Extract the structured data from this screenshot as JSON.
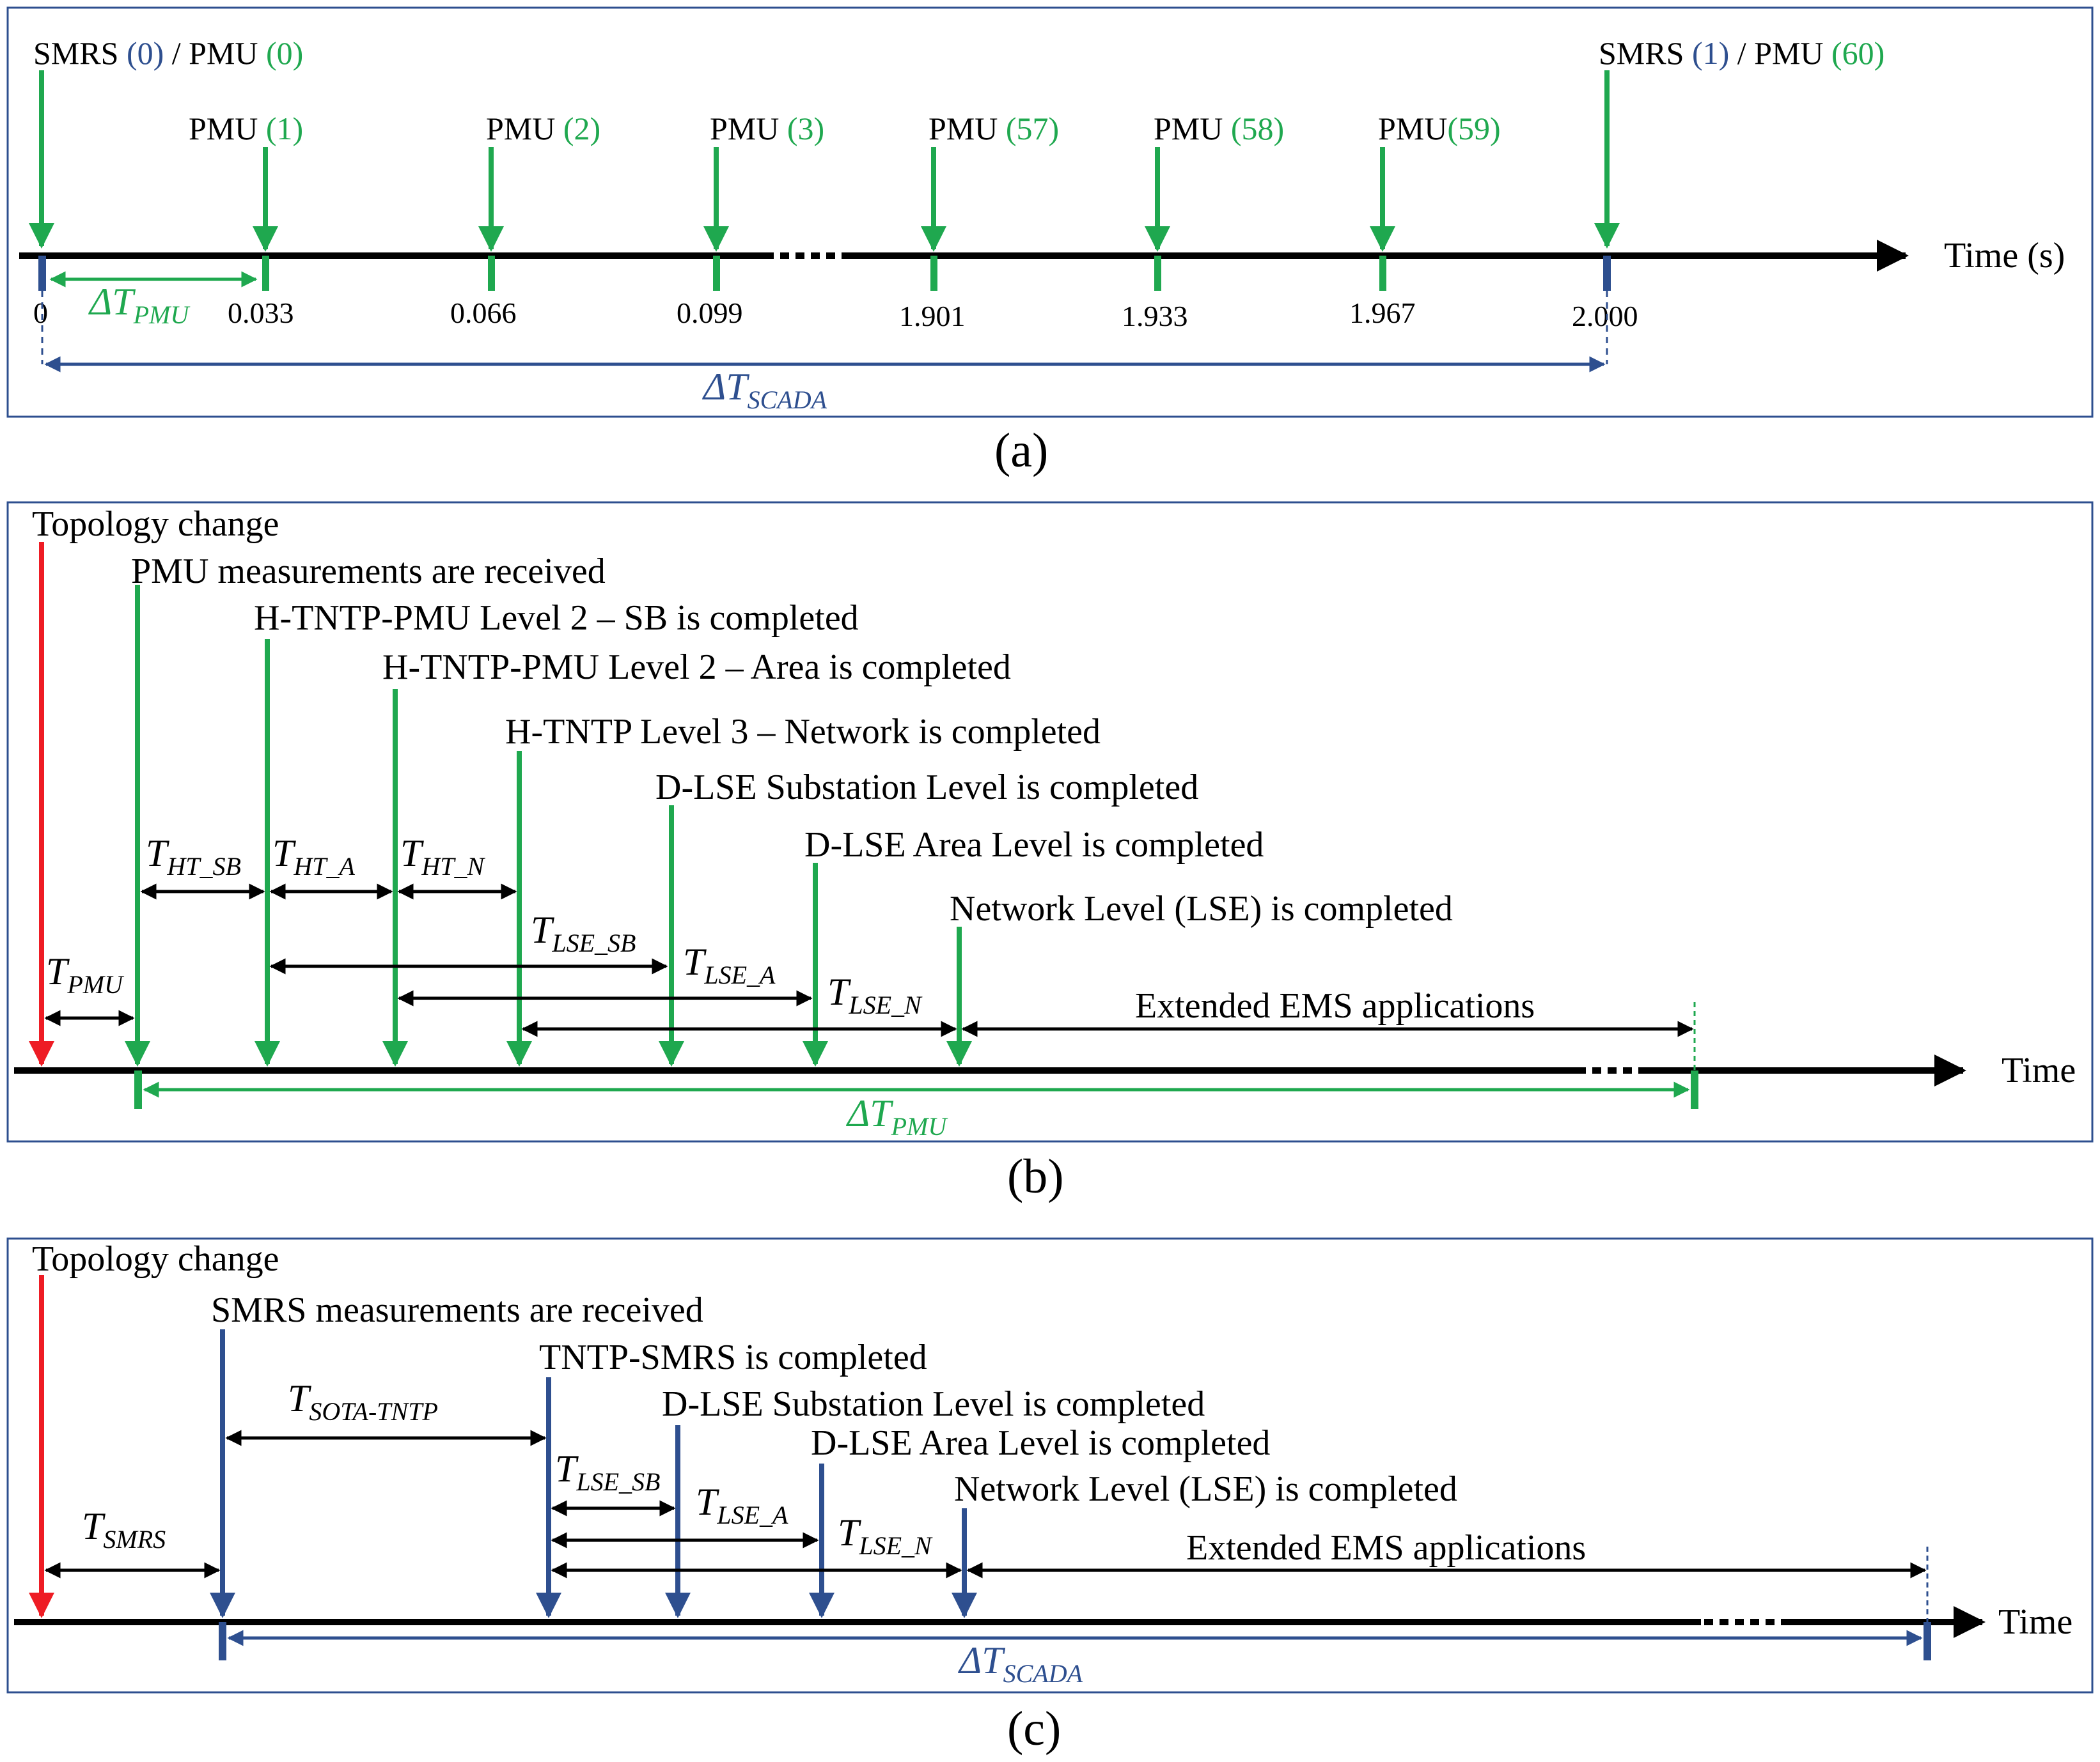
{
  "panel_a": {
    "caption": "(a)",
    "axis_label": "Time (s)",
    "smrs_start": {
      "label": "SMRS",
      "smrs_index": "(0)",
      "sep": "/",
      "pmu_label": "PMU",
      "pmu_index": "(0)"
    },
    "smrs_end": {
      "label": "SMRS",
      "smrs_index": "(1)",
      "sep": "/",
      "pmu_label": "PMU",
      "pmu_index": "(60)"
    },
    "pmu_labels": [
      {
        "label": "PMU",
        "index": "(1)"
      },
      {
        "label": "PMU",
        "index": "(2)"
      },
      {
        "label": "PMU",
        "index": "(3)"
      },
      {
        "label": "PMU",
        "index": "(57)"
      },
      {
        "label": "PMU",
        "index": "(58)"
      },
      {
        "label": "PMU",
        "index": "(59)"
      }
    ],
    "ticks": [
      "0",
      "0.033",
      "0.066",
      "0.099",
      "1.901",
      "1.933",
      "1.967",
      "2.000"
    ],
    "delta_pmu": {
      "sym": "ΔT",
      "sub": "PMU"
    },
    "delta_scada": {
      "sym": "ΔT",
      "sub": "SCADA"
    }
  },
  "panel_b": {
    "caption": "(b)",
    "axis_label": "Time",
    "events": [
      "Topology change",
      "PMU measurements are received",
      "H-TNTP-PMU Level 2 – SB is completed",
      "H-TNTP-PMU Level 2 – Area is completed",
      "H-TNTP Level 3 – Network is completed",
      "D-LSE Substation Level is completed",
      "D-LSE Area Level is completed",
      "Network Level (LSE) is completed"
    ],
    "intervals": [
      {
        "sym": "T",
        "sub": "HT_SB"
      },
      {
        "sym": "T",
        "sub": "HT_A"
      },
      {
        "sym": "T",
        "sub": "HT_N"
      },
      {
        "sym": "T",
        "sub": "LSE_SB"
      },
      {
        "sym": "T",
        "sub": "LSE_A"
      },
      {
        "sym": "T",
        "sub": "LSE_N"
      },
      {
        "sym": "T",
        "sub": "PMU"
      }
    ],
    "ems_label": "Extended EMS applications",
    "delta": {
      "sym": "ΔT",
      "sub": "PMU"
    }
  },
  "panel_c": {
    "caption": "(c)",
    "axis_label": "Time",
    "events": [
      "Topology change",
      "SMRS measurements are received",
      "TNTP-SMRS is completed",
      "D-LSE Substation Level is completed",
      "D-LSE Area Level is completed",
      "Network Level (LSE) is completed"
    ],
    "intervals": [
      {
        "sym": "T",
        "sub": "SOTA-TNTP"
      },
      {
        "sym": "T",
        "sub": "LSE_SB"
      },
      {
        "sym": "T",
        "sub": "LSE_A"
      },
      {
        "sym": "T",
        "sub": "LSE_N"
      },
      {
        "sym": "T",
        "sub": "SMRS"
      }
    ],
    "ems_label": "Extended EMS applications",
    "delta": {
      "sym": "ΔT",
      "sub": "SCADA"
    }
  },
  "colors": {
    "green": "#1fa84f",
    "blue": "#2e4f8f",
    "red": "#ee1c24",
    "black": "#000000",
    "frame": "#2e4f8f"
  }
}
